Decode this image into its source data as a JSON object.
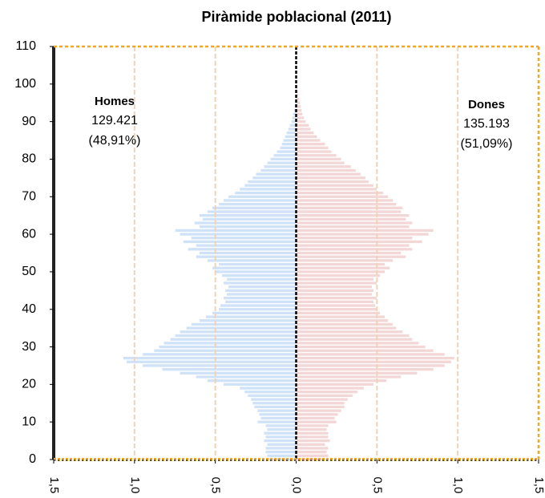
{
  "chart_data": {
    "type": "pyramid",
    "title": "Piràmide poblacional (2011)",
    "y": [
      0,
      1,
      2,
      3,
      4,
      5,
      6,
      7,
      8,
      9,
      10,
      11,
      12,
      13,
      14,
      15,
      16,
      17,
      18,
      19,
      20,
      21,
      22,
      23,
      24,
      25,
      26,
      27,
      28,
      29,
      30,
      31,
      32,
      33,
      34,
      35,
      36,
      37,
      38,
      39,
      40,
      41,
      42,
      43,
      44,
      45,
      46,
      47,
      48,
      49,
      50,
      51,
      52,
      53,
      54,
      55,
      56,
      57,
      58,
      59,
      60,
      61,
      62,
      63,
      64,
      65,
      66,
      67,
      68,
      69,
      70,
      71,
      72,
      73,
      74,
      75,
      76,
      77,
      78,
      79,
      80,
      81,
      82,
      83,
      84,
      85,
      86,
      87,
      88,
      89,
      90,
      91,
      92,
      93,
      94,
      95,
      96,
      97,
      98,
      99,
      100
    ],
    "series": [
      {
        "name": "Homes",
        "total": "129.421",
        "share": "(48,91%)",
        "color": "#cfe2f8",
        "values": [
          -0.17,
          -0.18,
          -0.19,
          -0.19,
          -0.18,
          -0.2,
          -0.19,
          -0.2,
          -0.18,
          -0.19,
          -0.24,
          -0.22,
          -0.23,
          -0.24,
          -0.26,
          -0.27,
          -0.28,
          -0.3,
          -0.32,
          -0.35,
          -0.45,
          -0.55,
          -0.62,
          -0.72,
          -0.83,
          -0.95,
          -1.05,
          -1.07,
          -0.95,
          -0.88,
          -0.85,
          -0.82,
          -0.78,
          -0.75,
          -0.72,
          -0.68,
          -0.65,
          -0.6,
          -0.56,
          -0.52,
          -0.48,
          -0.47,
          -0.44,
          -0.45,
          -0.43,
          -0.44,
          -0.42,
          -0.45,
          -0.43,
          -0.46,
          -0.5,
          -0.52,
          -0.48,
          -0.55,
          -0.62,
          -0.6,
          -0.67,
          -0.62,
          -0.7,
          -0.65,
          -0.72,
          -0.75,
          -0.6,
          -0.63,
          -0.58,
          -0.6,
          -0.55,
          -0.52,
          -0.48,
          -0.45,
          -0.42,
          -0.38,
          -0.35,
          -0.32,
          -0.3,
          -0.27,
          -0.25,
          -0.22,
          -0.2,
          -0.18,
          -0.16,
          -0.14,
          -0.12,
          -0.1,
          -0.09,
          -0.08,
          -0.07,
          -0.06,
          -0.05,
          -0.04,
          -0.03,
          -0.025,
          -0.02,
          -0.015,
          -0.01,
          -0.008,
          -0.005,
          -0.004,
          -0.003,
          -0.002,
          -0.001
        ]
      },
      {
        "name": "Dones",
        "total": "135.193",
        "share": "(51,09%)",
        "color": "#f3d6d6",
        "values": [
          0.18,
          0.2,
          0.19,
          0.2,
          0.18,
          0.21,
          0.2,
          0.2,
          0.19,
          0.2,
          0.25,
          0.24,
          0.26,
          0.28,
          0.3,
          0.3,
          0.32,
          0.35,
          0.38,
          0.42,
          0.48,
          0.56,
          0.65,
          0.75,
          0.85,
          0.92,
          0.96,
          0.98,
          0.92,
          0.85,
          0.8,
          0.76,
          0.72,
          0.7,
          0.66,
          0.62,
          0.6,
          0.57,
          0.55,
          0.52,
          0.5,
          0.49,
          0.48,
          0.5,
          0.47,
          0.48,
          0.47,
          0.5,
          0.48,
          0.52,
          0.55,
          0.58,
          0.55,
          0.6,
          0.68,
          0.65,
          0.72,
          0.7,
          0.78,
          0.72,
          0.82,
          0.85,
          0.7,
          0.72,
          0.68,
          0.7,
          0.65,
          0.66,
          0.62,
          0.6,
          0.57,
          0.54,
          0.5,
          0.48,
          0.45,
          0.43,
          0.4,
          0.37,
          0.34,
          0.3,
          0.28,
          0.25,
          0.22,
          0.2,
          0.18,
          0.15,
          0.13,
          0.11,
          0.09,
          0.08,
          0.06,
          0.05,
          0.04,
          0.035,
          0.03,
          0.025,
          0.02,
          0.015,
          0.01,
          0.008,
          0.005
        ]
      }
    ],
    "xlim": [
      -1.5,
      1.5
    ],
    "xticks": [
      {
        "value": -1.5,
        "label": "1,5"
      },
      {
        "value": -1.0,
        "label": "1,0"
      },
      {
        "value": -0.5,
        "label": "0,5"
      },
      {
        "value": 0,
        "label": "0,0"
      },
      {
        "value": 0.5,
        "label": "0,5"
      },
      {
        "value": 1.0,
        "label": "1,0"
      },
      {
        "value": 1.5,
        "label": "1,5"
      }
    ],
    "ylim": [
      0,
      110
    ],
    "yticks": [
      0,
      10,
      20,
      30,
      40,
      50,
      60,
      70,
      80,
      90,
      100,
      110
    ],
    "grid": true
  }
}
